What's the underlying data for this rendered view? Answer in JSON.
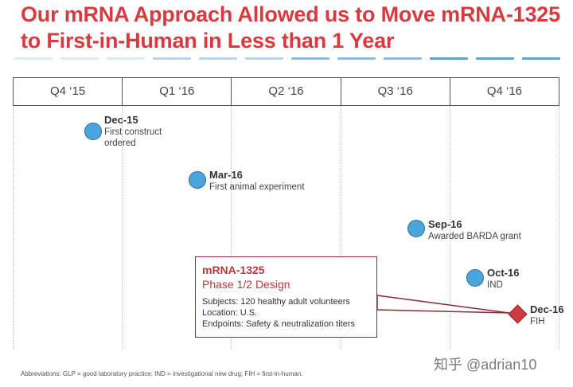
{
  "title": "Our mRNA Approach Allowed us to Move mRNA-1325 to First-in-Human in Less than 1 Year",
  "quarters": [
    "Q4 ‘15",
    "Q1 ‘16",
    "Q2 ‘16",
    "Q3 ‘16",
    "Q4 ‘16"
  ],
  "milestones": [
    {
      "date": "Dec-15",
      "desc": [
        "First construct",
        "ordered"
      ],
      "marker": "circle"
    },
    {
      "date": "Mar-16",
      "desc": [
        "First animal experiment"
      ],
      "marker": "circle"
    },
    {
      "date": "Sep-16",
      "desc": [
        "Awarded BARDA grant"
      ],
      "marker": "circle"
    },
    {
      "date": "Oct-16",
      "desc": [
        "IND"
      ],
      "marker": "circle"
    },
    {
      "date": "Dec-16",
      "desc": [
        "FIH"
      ],
      "marker": "diamond"
    }
  ],
  "callout": {
    "title": "mRNA-1325",
    "subtitle": "Phase 1/2 Design",
    "lines": [
      "Subjects: 120 healthy adult volunteers",
      "Location: U.S.",
      "Endpoints: Safety & neutralization titers"
    ]
  },
  "footnote": "Abbreviations: GLP = good laboratory practice; IND = investigational new drug; FIH = first-in-human.",
  "watermark": "知乎 @adrian10",
  "colors": {
    "title": "#d93a3f",
    "milestone_dot": "#4aa5dd",
    "fih_diamond": "#d13b40",
    "callout_border": "#8e2a35",
    "dash_palette": [
      "#dbeaf5",
      "#b7d5ec",
      "#8bbde0",
      "#5fa3d4"
    ]
  }
}
